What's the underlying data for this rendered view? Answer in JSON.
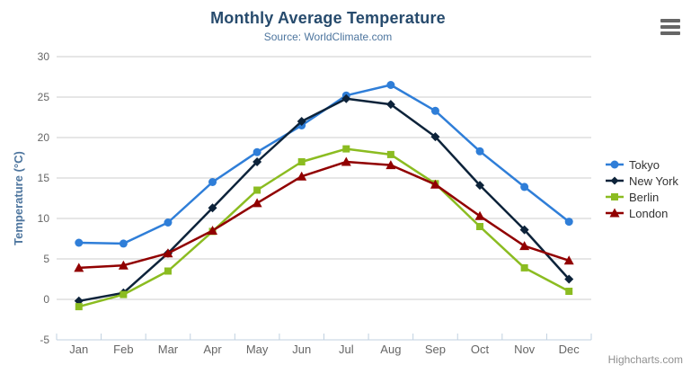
{
  "chart_data": {
    "type": "line",
    "title": "Monthly Average Temperature",
    "subtitle": "Source: WorldClimate.com",
    "xlabel": "",
    "ylabel": "Temperature (°C)",
    "ylim": [
      -5,
      30
    ],
    "ytick_step": 5,
    "grid": true,
    "legend_position": "right",
    "categories": [
      "Jan",
      "Feb",
      "Mar",
      "Apr",
      "May",
      "Jun",
      "Jul",
      "Aug",
      "Sep",
      "Oct",
      "Nov",
      "Dec"
    ],
    "series": [
      {
        "name": "Tokyo",
        "color": "#2f7ed8",
        "marker": "circle",
        "values": [
          7.0,
          6.9,
          9.5,
          14.5,
          18.2,
          21.5,
          25.2,
          26.5,
          23.3,
          18.3,
          13.9,
          9.6
        ]
      },
      {
        "name": "New York",
        "color": "#0d233a",
        "marker": "diamond",
        "values": [
          -0.2,
          0.8,
          5.7,
          11.3,
          17.0,
          22.0,
          24.8,
          24.1,
          20.1,
          14.1,
          8.6,
          2.5
        ]
      },
      {
        "name": "Berlin",
        "color": "#8bbc21",
        "marker": "square",
        "values": [
          -0.9,
          0.6,
          3.5,
          8.4,
          13.5,
          17.0,
          18.6,
          17.9,
          14.3,
          9.0,
          3.9,
          1.0
        ]
      },
      {
        "name": "London",
        "color": "#910000",
        "marker": "triangle",
        "values": [
          3.9,
          4.2,
          5.7,
          8.5,
          11.9,
          15.2,
          17.0,
          16.6,
          14.2,
          10.3,
          6.6,
          4.8
        ]
      }
    ],
    "credit": "Highcharts.com",
    "colors": {
      "title": "#274b6d",
      "subtitle": "#4d759e",
      "axis_labels": "#666666",
      "gridline": "#cccccc",
      "axis_line": "#c0d0e0",
      "legend_text": "#333333",
      "credit_text": "#909090",
      "menu_icon": "#666666"
    }
  }
}
